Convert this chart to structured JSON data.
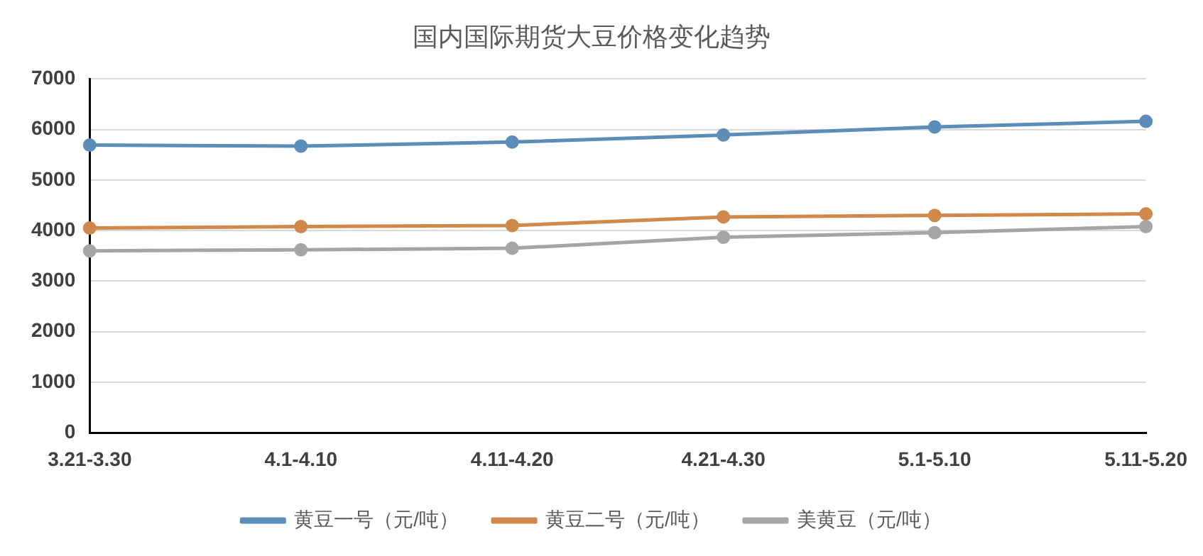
{
  "chart_data": {
    "type": "line",
    "title": "国内国际期货大豆价格变化趋势",
    "categories": [
      "3.21-3.30",
      "4.1-4.10",
      "4.11-4.20",
      "4.21-4.30",
      "5.1-5.10",
      "5.11-5.20"
    ],
    "series": [
      {
        "name": "黄豆一号（元/吨）",
        "color": "#5b8db8",
        "values": [
          5690,
          5670,
          5750,
          5890,
          6050,
          6160
        ]
      },
      {
        "name": "黄豆二号（元/吨）",
        "color": "#d0894a",
        "values": [
          4050,
          4080,
          4100,
          4270,
          4300,
          4330
        ]
      },
      {
        "name": "美黄豆（元/吨）",
        "color": "#a5a5a5",
        "values": [
          3600,
          3620,
          3650,
          3870,
          3960,
          4080
        ]
      }
    ],
    "ylim": [
      0,
      7000
    ],
    "yticks": [
      0,
      1000,
      2000,
      3000,
      4000,
      5000,
      6000,
      7000
    ],
    "grid": "y",
    "legend": "bottom",
    "marker": "circle",
    "line_style": "solid"
  }
}
